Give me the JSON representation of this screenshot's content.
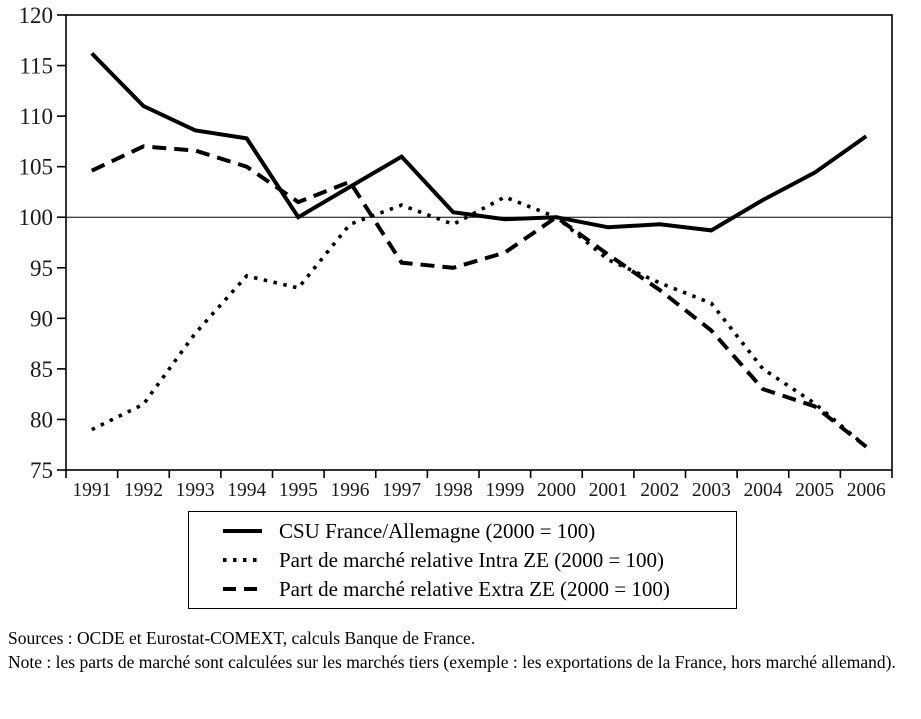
{
  "chart_data": {
    "type": "line",
    "title": "",
    "xlabel": "",
    "ylabel": "",
    "x": [
      "1991",
      "1992",
      "1993",
      "1994",
      "1995",
      "1996",
      "1997",
      "1998",
      "1999",
      "2000",
      "2001",
      "2002",
      "2003",
      "2004",
      "2005",
      "2006"
    ],
    "series": [
      {
        "key": "csu",
        "name": "CSU France/Allemagne (2000 = 100)",
        "style": "solid",
        "values": [
          116.2,
          111,
          108.6,
          107.8,
          100,
          103,
          106,
          100.5,
          99.8,
          100,
          99,
          99.3,
          98.7,
          101.7,
          104.4,
          108
        ]
      },
      {
        "key": "intra-ze",
        "name": "Part de marché relative Intra ZE (2000 = 100)",
        "style": "dotted",
        "values": [
          79,
          81.5,
          88.5,
          94.2,
          93,
          99.3,
          101.2,
          99.3,
          102,
          100,
          95.8,
          93.5,
          91.5,
          85,
          81.6,
          77.3
        ]
      },
      {
        "key": "extra-ze",
        "name": "Part de marché relative Extra ZE (2000 = 100)",
        "style": "dashed",
        "values": [
          104.6,
          107,
          106.6,
          105,
          101.5,
          103.5,
          95.5,
          95,
          96.5,
          100,
          96.3,
          92.8,
          88.8,
          83,
          81.3,
          77.3
        ]
      }
    ],
    "ylim": [
      75,
      120
    ],
    "ytick_step": 5,
    "yticks": [
      "75",
      "80",
      "85",
      "90",
      "95",
      "100",
      "105",
      "110",
      "115",
      "120"
    ],
    "reference_line": 100,
    "grid": false,
    "legend_position": "below",
    "line_color": "#000000"
  },
  "notes": {
    "sources": "Sources : OCDE et Eurostat-COMEXT, calculs Banque de France.",
    "note": "Note : les parts de marché sont calculées sur les marchés tiers (exemple : les exportations de la France, hors marché allemand)."
  }
}
